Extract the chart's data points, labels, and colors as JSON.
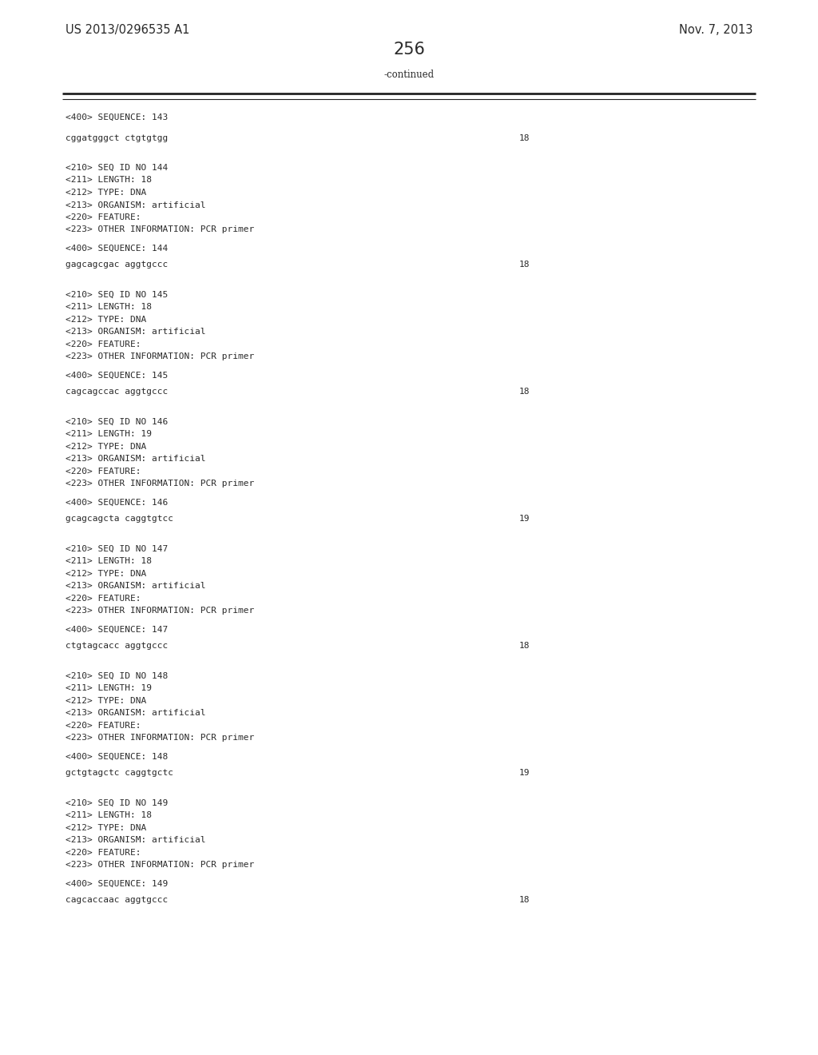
{
  "bg_color": "#ffffff",
  "text_color": "#2a2a2a",
  "header_left": "US 2013/0296535 A1",
  "header_right": "Nov. 7, 2013",
  "page_number": "256",
  "continued_text": "-continued",
  "font_size": 8.0,
  "header_font_size": 10.5,
  "page_num_font_size": 15,
  "content_blocks": [
    {
      "lines": [
        "<400> SEQUENCE: 143"
      ],
      "seq": "cggatgggct ctgtgtgg",
      "seq_num": "18"
    },
    {
      "lines": [
        "<210> SEQ ID NO 144",
        "<211> LENGTH: 18",
        "<212> TYPE: DNA",
        "<213> ORGANISM: artificial",
        "<220> FEATURE:",
        "<223> OTHER INFORMATION: PCR primer"
      ],
      "seq_label": "<400> SEQUENCE: 144",
      "seq": "gagcagcgac aggtgccc",
      "seq_num": "18"
    },
    {
      "lines": [
        "<210> SEQ ID NO 145",
        "<211> LENGTH: 18",
        "<212> TYPE: DNA",
        "<213> ORGANISM: artificial",
        "<220> FEATURE:",
        "<223> OTHER INFORMATION: PCR primer"
      ],
      "seq_label": "<400> SEQUENCE: 145",
      "seq": "cagcagccac aggtgccc",
      "seq_num": "18"
    },
    {
      "lines": [
        "<210> SEQ ID NO 146",
        "<211> LENGTH: 19",
        "<212> TYPE: DNA",
        "<213> ORGANISM: artificial",
        "<220> FEATURE:",
        "<223> OTHER INFORMATION: PCR primer"
      ],
      "seq_label": "<400> SEQUENCE: 146",
      "seq": "gcagcagcta caggtgtcc",
      "seq_num": "19"
    },
    {
      "lines": [
        "<210> SEQ ID NO 147",
        "<211> LENGTH: 18",
        "<212> TYPE: DNA",
        "<213> ORGANISM: artificial",
        "<220> FEATURE:",
        "<223> OTHER INFORMATION: PCR primer"
      ],
      "seq_label": "<400> SEQUENCE: 147",
      "seq": "ctgtagcacc aggtgccc",
      "seq_num": "18"
    },
    {
      "lines": [
        "<210> SEQ ID NO 148",
        "<211> LENGTH: 19",
        "<212> TYPE: DNA",
        "<213> ORGANISM: artificial",
        "<220> FEATURE:",
        "<223> OTHER INFORMATION: PCR primer"
      ],
      "seq_label": "<400> SEQUENCE: 148",
      "seq": "gctgtagctc caggtgctc",
      "seq_num": "19"
    },
    {
      "lines": [
        "<210> SEQ ID NO 149",
        "<211> LENGTH: 18",
        "<212> TYPE: DNA",
        "<213> ORGANISM: artificial",
        "<220> FEATURE:",
        "<223> OTHER INFORMATION: PCR primer"
      ],
      "seq_label": "<400> SEQUENCE: 149",
      "seq": "cagcaccaac aggtgccc",
      "seq_num": "18"
    }
  ]
}
